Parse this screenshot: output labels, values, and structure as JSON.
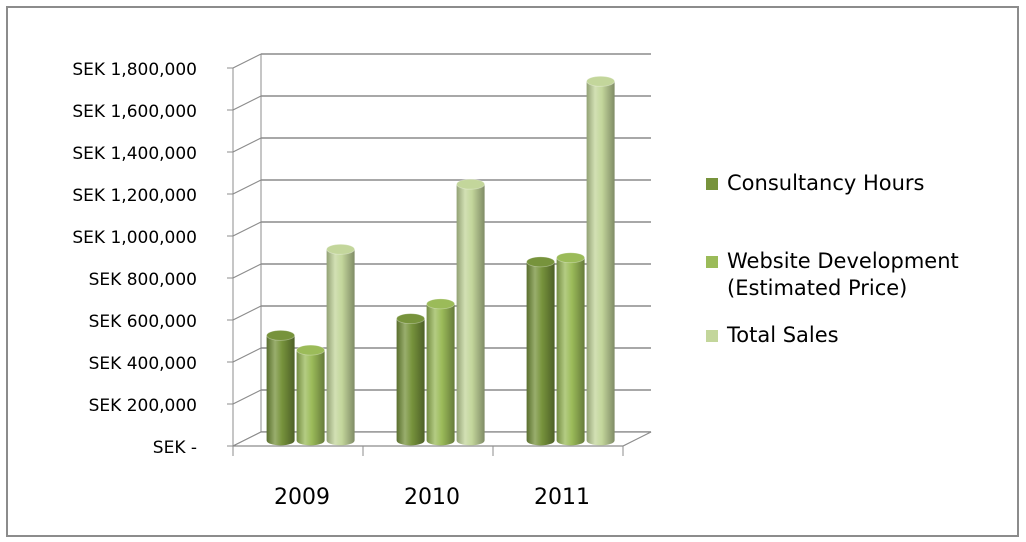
{
  "chart_data": {
    "type": "bar",
    "categories": [
      "2009",
      "2010",
      "2011"
    ],
    "series": [
      {
        "name": "Consultancy Hours",
        "values": [
          500000,
          580000,
          850000
        ],
        "color": "#77933c"
      },
      {
        "name": "Website Development\n(Estimated Price)",
        "values": [
          430000,
          650000,
          870000
        ],
        "color": "#9bbb59"
      },
      {
        "name": "Total Sales",
        "values": [
          910000,
          1220000,
          1710000
        ],
        "color": "#c3d69b"
      }
    ],
    "ylim": [
      0,
      1800000
    ],
    "ytick_labels": [
      "SEK -",
      "SEK 200,000",
      "SEK 400,000",
      "SEK 600,000",
      "SEK 800,000",
      "SEK 1,000,000",
      "SEK 1,200,000",
      "SEK 1,400,000",
      "SEK 1,600,000",
      "SEK 1,800,000"
    ],
    "grid": true,
    "legend_position": "right",
    "style": "3d-cylinder"
  }
}
